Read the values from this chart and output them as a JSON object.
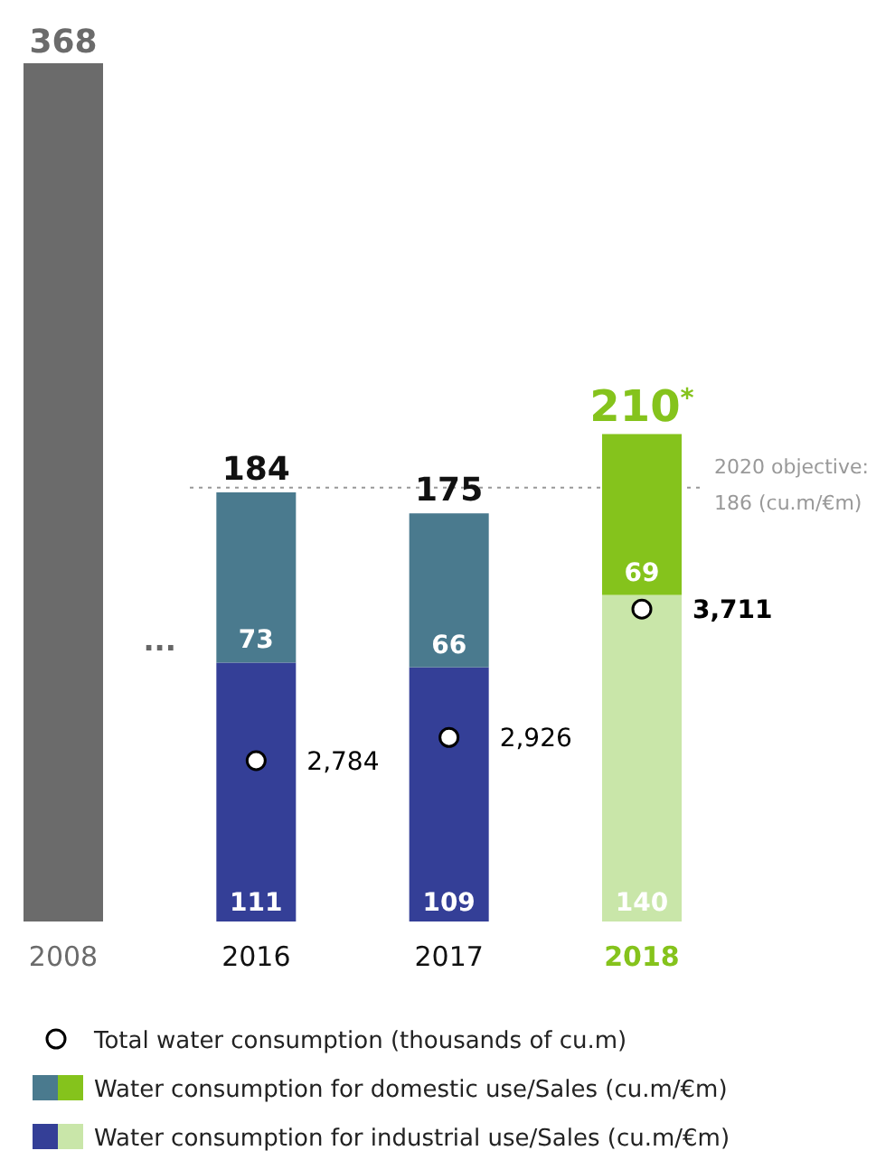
{
  "chart_data": {
    "type": "bar",
    "stacked": true,
    "categories": [
      "2008",
      "2016",
      "2017",
      "2018"
    ],
    "ylim": [
      0,
      368
    ],
    "y2lim": [
      1800,
      7050
    ],
    "tick_labels": "x",
    "legend": "bottom",
    "data_labels": true,
    "totals": [
      null,
      "184",
      "175",
      "210$^{*}$"
    ],
    "series": [
      {
        "values": [
          368,
          null,
          null,
          null
        ],
        "color": "#6b6b6b"
      },
      {
        "name": "Water consumption for industrial use/Sales (cu.m/€m)",
        "values": [
          null,
          111,
          109,
          140
        ],
        "colors": [
          "#6b6b6b",
          "#343f97",
          "#343f97",
          "#c9e6a9"
        ]
      },
      {
        "name": "Water consumption for domestic use/Sales (cu.m/€m)",
        "values": [
          null,
          73,
          66,
          69
        ],
        "colors": [
          "#6b6b6b",
          "#4a7a8e",
          "#4a7a8e",
          "#85c31c"
        ]
      },
      {
        "name": "Total water consumption (thousands of cu.m)",
        "type": "scatter",
        "axis": "y2",
        "marker": "circle",
        "color": "#ffffff",
        "values": [
          null,
          2784,
          2926,
          3711
        ],
        "value_labels": [
          null,
          "2,784",
          "2,926",
          "3,711"
        ]
      }
    ],
    "ref_lines": [
      {
        "axis": "y",
        "value": 186,
        "label": "2020 objective: 186 (cu.m/€m)",
        "color": "#999999",
        "line_style": "dotted"
      }
    ],
    "annotations": [
      "..."
    ]
  }
}
